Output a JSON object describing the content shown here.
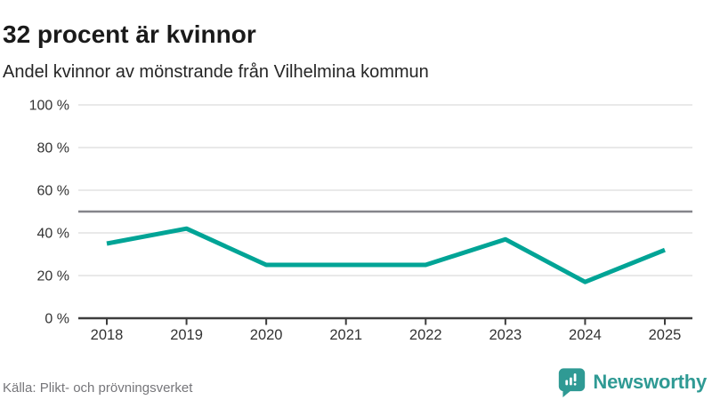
{
  "header": {
    "title": "32 procent är kvinnor",
    "subtitle": "Andel kvinnor av mönstrande från Vilhelmina kommun"
  },
  "chart_data": {
    "type": "line",
    "title": "32 procent är kvinnor",
    "subtitle": "Andel kvinnor av mönstrande från Vilhelmina kommun",
    "categories": [
      "2018",
      "2019",
      "2020",
      "2021",
      "2022",
      "2023",
      "2024",
      "2025"
    ],
    "series": [
      {
        "name": "Andel kvinnor av mönstrande",
        "values": [
          35,
          42,
          25,
          25,
          25,
          37,
          17,
          32
        ]
      }
    ],
    "unit": "%",
    "ylim": [
      0,
      100
    ],
    "yticks": [
      {
        "value": 0,
        "label": "0 %"
      },
      {
        "value": 20,
        "label": "20 %"
      },
      {
        "value": 40,
        "label": "40 %"
      },
      {
        "value": 60,
        "label": "60 %"
      },
      {
        "value": 80,
        "label": "80 %"
      },
      {
        "value": 100,
        "label": "100 %"
      }
    ],
    "reference_line": {
      "value": 50
    },
    "grid": true,
    "legend_position": "none"
  },
  "colors": {
    "line": "#00a496",
    "reference_line": "#85858a",
    "gridline": "#e2e2e2",
    "axis": "#3d3d3d",
    "tick_label": "#333333",
    "brand_teal": "#2f9a94"
  },
  "footer": {
    "source": "Källa: Plikt- och prövningsverket",
    "logo_text": "Newsworthy"
  }
}
